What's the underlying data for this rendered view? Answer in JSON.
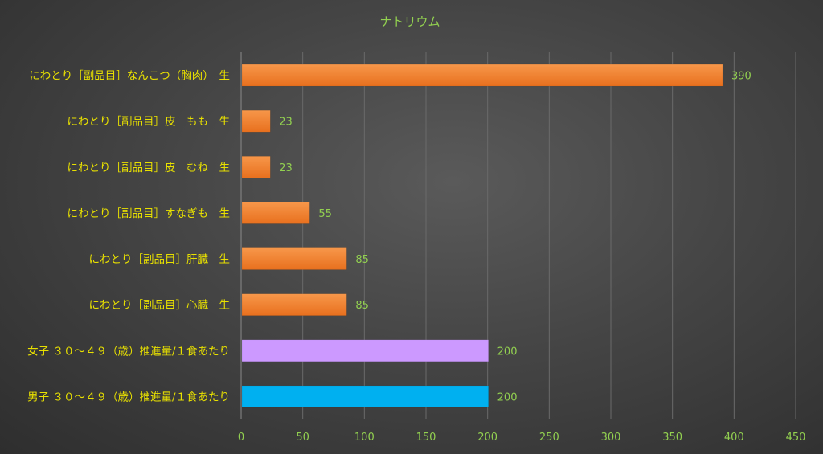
{
  "chart_data": {
    "type": "bar",
    "orientation": "horizontal",
    "title": "ナトリウム",
    "xlabel": "",
    "ylabel": "",
    "xlim": [
      0,
      450
    ],
    "ticks": [
      0,
      50,
      100,
      150,
      200,
      250,
      300,
      350,
      400,
      450
    ],
    "grid": true,
    "legend": "none",
    "categories": [
      "にわとり［副品目］なんこつ（胸肉）　生",
      "にわとり［副品目］皮　もも　生",
      "にわとり［副品目］皮　むね　生",
      "にわとり［副品目］すなぎも　生",
      "にわとり［副品目］肝臓　生",
      "にわとり［副品目］心臓　生",
      "女子 ３０～４９（歳）推進量/１食あたり",
      "男子 ３０～４９（歳）推進量/１食あたり"
    ],
    "values": [
      390,
      23,
      23,
      55,
      85,
      85,
      200,
      200
    ],
    "colors": [
      "#f07f2a",
      "#f07f2a",
      "#f07f2a",
      "#f07f2a",
      "#f07f2a",
      "#f07f2a",
      "#cc99ff",
      "#00b0f0"
    ]
  }
}
